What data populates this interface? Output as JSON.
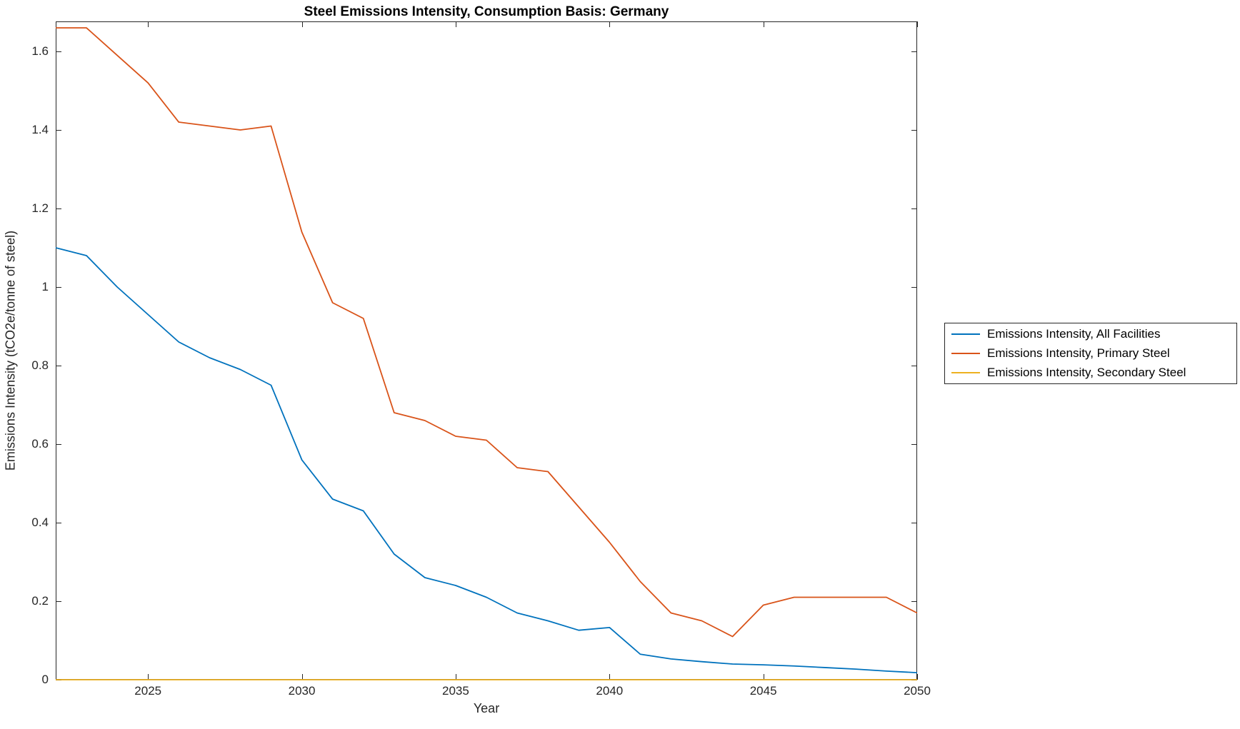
{
  "chart_data": {
    "type": "line",
    "title": "Steel Emissions Intensity, Consumption Basis: Germany",
    "xlabel": "Year",
    "ylabel": "Emissions Intensity (tCO2e/tonne of steel)",
    "grid": false,
    "legend_position": "outside-right",
    "axis_color": "#262626",
    "xlim": [
      2022,
      2050
    ],
    "ylim": [
      0,
      1.6764
    ],
    "xticks": [
      2025,
      2030,
      2035,
      2040,
      2045,
      2050
    ],
    "xtick_labels": [
      "2025",
      "2030",
      "2035",
      "2040",
      "2045",
      "2050"
    ],
    "yticks": [
      0,
      0.2,
      0.4,
      0.6,
      0.8,
      1,
      1.2,
      1.4,
      1.6
    ],
    "ytick_labels": [
      "0",
      "0.2",
      "0.4",
      "0.6",
      "0.8",
      "1",
      "1.2",
      "1.4",
      "1.6"
    ],
    "x": [
      2022,
      2023,
      2024,
      2025,
      2026,
      2027,
      2028,
      2029,
      2030,
      2031,
      2032,
      2033,
      2034,
      2035,
      2036,
      2037,
      2038,
      2039,
      2040,
      2041,
      2042,
      2043,
      2044,
      2045,
      2046,
      2047,
      2048,
      2049,
      2050
    ],
    "series": [
      {
        "name": "Emissions Intensity, All Facilities",
        "color": "#0072BD",
        "values": [
          1.1,
          1.08,
          1.0,
          0.93,
          0.86,
          0.82,
          0.79,
          0.75,
          0.56,
          0.46,
          0.43,
          0.32,
          0.26,
          0.24,
          0.21,
          0.17,
          0.15,
          0.126,
          0.133,
          0.065,
          0.053,
          0.046,
          0.04,
          0.038,
          0.035,
          0.031,
          0.027,
          0.022,
          0.018
        ]
      },
      {
        "name": "Emissions Intensity, Primary Steel",
        "color": "#D95319",
        "values": [
          1.66,
          1.66,
          1.59,
          1.52,
          1.42,
          1.41,
          1.4,
          1.41,
          1.14,
          0.96,
          0.92,
          0.68,
          0.66,
          0.62,
          0.61,
          0.54,
          0.53,
          0.44,
          0.35,
          0.25,
          0.17,
          0.15,
          0.11,
          0.19,
          0.21,
          0.21,
          0.21,
          0.21,
          0.17
        ]
      },
      {
        "name": "Emissions Intensity, Secondary Steel",
        "color": "#EDB120",
        "values": [
          0,
          0,
          0,
          0,
          0,
          0,
          0,
          0,
          0,
          0,
          0,
          0,
          0,
          0,
          0,
          0,
          0,
          0,
          0,
          0,
          0,
          0,
          0,
          0,
          0,
          0,
          0,
          0,
          0
        ]
      }
    ]
  }
}
